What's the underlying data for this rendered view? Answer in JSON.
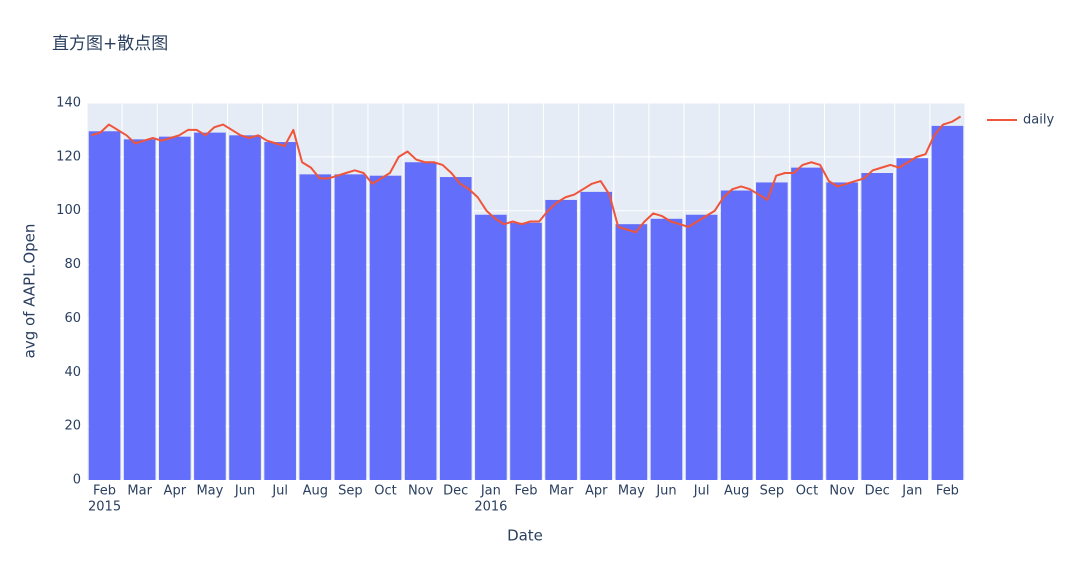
{
  "chart_data": {
    "type": "bar",
    "title": "直方图+散点图",
    "xlabel": "Date",
    "ylabel": "avg of AAPL.Open",
    "categories": [
      "Feb",
      "Mar",
      "Apr",
      "May",
      "Jun",
      "Jul",
      "Aug",
      "Sep",
      "Oct",
      "Nov",
      "Dec",
      "Jan",
      "Feb",
      "Mar",
      "Apr",
      "May",
      "Jun",
      "Jul",
      "Aug",
      "Sep",
      "Oct",
      "Nov",
      "Dec",
      "Jan",
      "Feb"
    ],
    "category_years": [
      "2015",
      null,
      null,
      null,
      null,
      null,
      null,
      null,
      null,
      null,
      null,
      "2016",
      null,
      null,
      null,
      null,
      null,
      null,
      null,
      null,
      null,
      null,
      null,
      null,
      null
    ],
    "values": [
      129.5,
      126.5,
      127.5,
      129,
      128,
      125.5,
      113.5,
      113.5,
      113,
      118,
      112.5,
      98.5,
      95.5,
      104,
      107,
      95,
      97,
      98.5,
      107.5,
      110.5,
      116,
      110.5,
      114,
      119.5,
      131.5
    ],
    "color": "#636efa",
    "ylim": [
      0,
      140
    ],
    "yticks": [
      0,
      20,
      40,
      60,
      80,
      100,
      120,
      140
    ],
    "grid": true,
    "legend": "right",
    "series": [
      {
        "name": "daily",
        "type": "line",
        "color": "#ef553b",
        "values": [
          [
            128,
            129,
            132,
            130
          ],
          [
            128,
            125,
            126,
            127
          ],
          [
            126,
            127,
            128,
            130
          ],
          [
            130,
            128,
            131,
            132
          ],
          [
            130,
            128,
            127,
            128
          ],
          [
            126,
            125,
            124,
            130
          ],
          [
            118,
            116,
            112,
            112
          ],
          [
            113,
            114,
            115,
            114
          ],
          [
            110,
            112,
            114,
            120
          ],
          [
            122,
            119,
            118,
            118
          ],
          [
            117,
            114,
            110,
            108
          ],
          [
            105,
            100,
            97,
            95
          ],
          [
            96,
            95,
            96,
            96
          ],
          [
            100,
            103,
            105,
            106
          ],
          [
            108,
            110,
            111,
            106
          ],
          [
            94,
            93,
            92,
            96
          ],
          [
            99,
            98,
            96,
            95
          ],
          [
            94,
            96,
            98,
            100
          ],
          [
            105,
            108,
            109,
            108
          ],
          [
            106,
            104,
            113,
            114
          ],
          [
            114,
            117,
            118,
            117
          ],
          [
            111,
            109,
            110,
            111
          ],
          [
            112,
            115,
            116,
            117
          ],
          [
            116,
            118,
            120,
            121
          ],
          [
            128,
            132,
            133,
            135
          ]
        ]
      }
    ]
  }
}
